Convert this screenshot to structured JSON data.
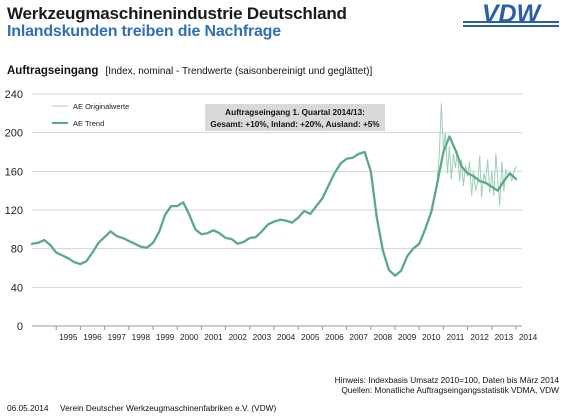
{
  "header": {
    "title": "Werkzeugmaschinenindustrie Deutschland",
    "subtitle": "Inlandskunden treiben die Nachfrage",
    "logo_text": "VDW"
  },
  "chart_data": {
    "type": "line",
    "title": "Auftragseingang",
    "unit": "[Index, nominal - Trendwerte  (saisonbereinigt und geglättet)]",
    "ylim": [
      0,
      240
    ],
    "y_ticks": [
      0,
      40,
      80,
      120,
      160,
      200,
      240
    ],
    "xlim": [
      1994.0,
      2014.25
    ],
    "x_tick_labels": [
      "1995",
      "1996",
      "1997",
      "1998",
      "1999",
      "2000",
      "2001",
      "2002",
      "2003",
      "2004",
      "2005",
      "2006",
      "2007",
      "2008",
      "2009",
      "2010",
      "2011",
      "2012",
      "2013",
      "2014"
    ],
    "grid": "horizontal",
    "legend_placement": "top-left",
    "annotation": {
      "line1": "Auftragseingang  1. Quartal 2014/13:",
      "line2": "Gesamt: +10%, Inland: +20%, Ausland: +5%"
    },
    "series": [
      {
        "name": "AE Originalwerte",
        "color": "#9fcfb7",
        "x": [
          2010.75,
          2010.83,
          2010.92,
          2011.0,
          2011.08,
          2011.17,
          2011.25,
          2011.33,
          2011.42,
          2011.5,
          2011.58,
          2011.67,
          2011.75,
          2011.83,
          2011.92,
          2012.0,
          2012.08,
          2012.17,
          2012.25,
          2012.33,
          2012.42,
          2012.5,
          2012.58,
          2012.67,
          2012.75,
          2012.83,
          2012.92,
          2013.0,
          2013.08,
          2013.17,
          2013.25,
          2013.33,
          2013.42,
          2013.5,
          2013.58,
          2013.67,
          2013.75,
          2013.83,
          2013.92,
          2014.0
        ],
        "values": [
          155,
          175,
          230,
          182,
          200,
          158,
          186,
          152,
          178,
          164,
          180,
          150,
          172,
          145,
          166,
          155,
          170,
          135,
          160,
          140,
          148,
          176,
          133,
          158,
          150,
          172,
          138,
          160,
          135,
          178,
          150,
          125,
          170,
          140,
          162,
          155,
          158,
          150,
          160,
          165
        ]
      },
      {
        "name": "AE Trend",
        "color": "#5aaa86",
        "x": [
          1994.0,
          1994.25,
          1994.5,
          1994.75,
          1995.0,
          1995.25,
          1995.5,
          1995.75,
          1996.0,
          1996.25,
          1996.5,
          1996.75,
          1997.0,
          1997.25,
          1997.5,
          1997.75,
          1998.0,
          1998.25,
          1998.5,
          1998.75,
          1999.0,
          1999.25,
          1999.5,
          1999.75,
          2000.0,
          2000.25,
          2000.5,
          2000.75,
          2001.0,
          2001.25,
          2001.5,
          2001.75,
          2002.0,
          2002.25,
          2002.5,
          2002.75,
          2003.0,
          2003.25,
          2003.5,
          2003.75,
          2004.0,
          2004.25,
          2004.5,
          2004.75,
          2005.0,
          2005.25,
          2005.5,
          2005.75,
          2006.0,
          2006.25,
          2006.5,
          2006.75,
          2007.0,
          2007.25,
          2007.5,
          2007.75,
          2008.0,
          2008.25,
          2008.5,
          2008.75,
          2009.0,
          2009.25,
          2009.5,
          2009.75,
          2010.0,
          2010.25,
          2010.5,
          2010.75,
          2011.0,
          2011.25,
          2011.5,
          2011.75,
          2012.0,
          2012.25,
          2012.5,
          2012.75,
          2013.0,
          2013.25,
          2013.5,
          2013.75,
          2014.0
        ],
        "values": [
          85,
          86,
          89,
          84,
          76,
          73,
          70,
          66,
          64,
          67,
          76,
          86,
          92,
          98,
          93,
          91,
          88,
          85,
          82,
          81,
          86,
          97,
          115,
          124,
          124,
          128,
          115,
          100,
          95,
          96,
          99,
          96,
          91,
          90,
          85,
          87,
          91,
          92,
          98,
          105,
          108,
          110,
          109,
          107,
          112,
          119,
          116,
          124,
          132,
          145,
          158,
          168,
          173,
          174,
          178,
          180,
          160,
          112,
          78,
          58,
          52,
          57,
          72,
          80,
          85,
          100,
          118,
          148,
          180,
          196,
          182,
          165,
          158,
          155,
          150,
          148,
          144,
          140,
          150,
          158,
          152
        ]
      }
    ]
  },
  "footer": {
    "note": "Hinweis: Indexbasis Umsatz 2010=100, Daten bis März 2014",
    "source": "Quellen: Monatliche Auftragseingangsstatistik VDMA, VDW",
    "date": "06.05.2014",
    "organization": "Verein Deutscher Werkzeugmaschinenfabriken e.V. (VDW)"
  }
}
